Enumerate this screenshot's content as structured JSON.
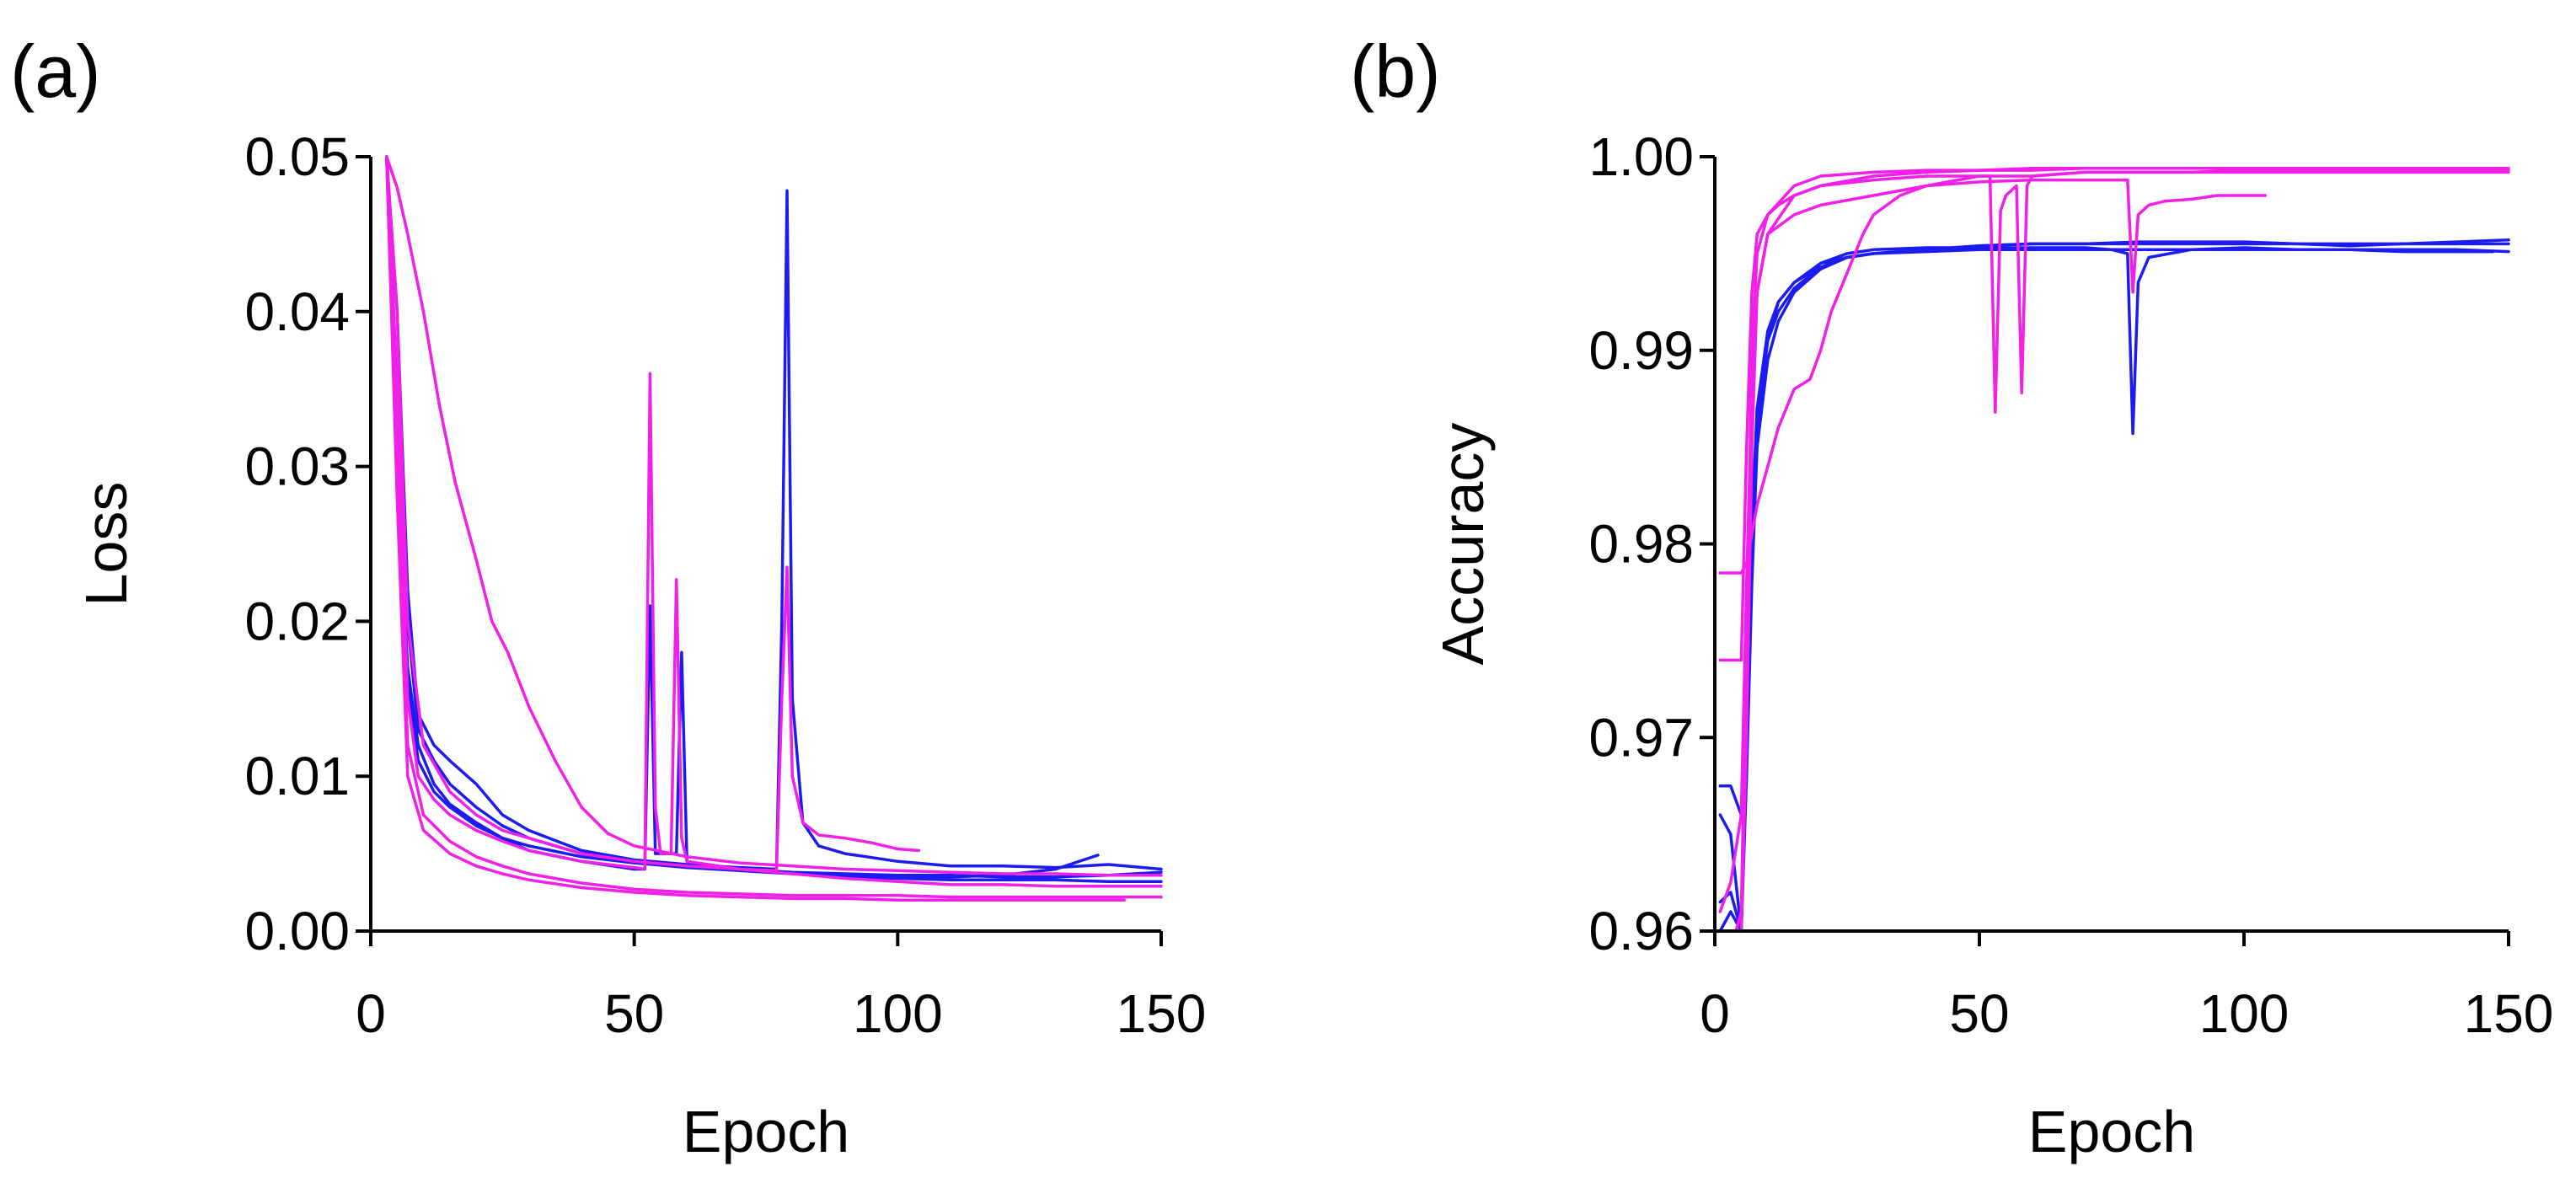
{
  "chart_data": [
    {
      "type": "line",
      "panel_label": "(a)",
      "xlabel": "Epoch",
      "ylabel": "Loss",
      "xlim": [
        0,
        150
      ],
      "ylim": [
        0,
        0.05
      ],
      "xticks": [
        0,
        50,
        100,
        150
      ],
      "xtick_labels": [
        "0",
        "50",
        "100",
        "150"
      ],
      "yticks": [
        0,
        0.01,
        0.02,
        0.03,
        0.04,
        0.05
      ],
      "ytick_labels": [
        "0.00",
        "0.01",
        "0.02",
        "0.03",
        "0.04",
        "0.05"
      ],
      "grid": false,
      "colors": {
        "blue": "#1c1cf0",
        "magenta": "#f020e8"
      },
      "series": [
        {
          "name": "blue-1",
          "color": "blue",
          "x": [
            3,
            5,
            7,
            9,
            12,
            15,
            20,
            25,
            30,
            40,
            50,
            60,
            70,
            80,
            90,
            100,
            110,
            120,
            130,
            140,
            150
          ],
          "values": [
            0.05,
            0.035,
            0.02,
            0.013,
            0.011,
            0.0095,
            0.008,
            0.0068,
            0.006,
            0.005,
            0.0045,
            0.0042,
            0.004,
            0.0038,
            0.0037,
            0.0036,
            0.0036,
            0.0035,
            0.0035,
            0.0036,
            0.0038
          ]
        },
        {
          "name": "blue-2",
          "color": "blue",
          "x": [
            3,
            5,
            7,
            9,
            12,
            15,
            20,
            25,
            30,
            40,
            50,
            52,
            53,
            54,
            58,
            59,
            60,
            70,
            80,
            90,
            100,
            110,
            120,
            130,
            140,
            150
          ],
          "values": [
            0.05,
            0.03,
            0.017,
            0.012,
            0.0095,
            0.0082,
            0.007,
            0.006,
            0.0052,
            0.0045,
            0.004,
            0.004,
            0.021,
            0.005,
            0.005,
            0.018,
            0.0045,
            0.004,
            0.0037,
            0.0035,
            0.0034,
            0.0033,
            0.0033,
            0.0033,
            0.0032,
            0.0032
          ]
        },
        {
          "name": "blue-3",
          "color": "blue",
          "x": [
            3,
            5,
            7,
            9,
            12,
            15,
            20,
            25,
            30,
            40,
            50,
            60,
            70,
            77,
            78,
            79,
            80,
            82,
            85,
            90,
            100,
            110,
            120,
            130,
            140,
            150
          ],
          "values": [
            0.05,
            0.04,
            0.022,
            0.014,
            0.012,
            0.011,
            0.0095,
            0.0075,
            0.0065,
            0.0052,
            0.0046,
            0.0043,
            0.0041,
            0.004,
            0.02,
            0.0478,
            0.015,
            0.007,
            0.0055,
            0.005,
            0.0045,
            0.0042,
            0.0042,
            0.0041,
            0.0043,
            0.004
          ]
        },
        {
          "name": "blue-4",
          "color": "blue",
          "x": [
            3,
            5,
            7,
            9,
            12,
            15,
            20,
            25,
            30,
            40,
            50,
            60,
            70,
            80,
            90,
            100,
            110,
            120,
            130,
            138
          ],
          "values": [
            0.05,
            0.032,
            0.016,
            0.011,
            0.009,
            0.008,
            0.0068,
            0.006,
            0.0055,
            0.0048,
            0.0044,
            0.0041,
            0.0039,
            0.0037,
            0.0036,
            0.0035,
            0.0035,
            0.0036,
            0.004,
            0.0049
          ]
        },
        {
          "name": "magenta-1",
          "color": "magenta",
          "x": [
            3,
            5,
            7,
            10,
            13,
            16,
            20,
            23,
            26,
            30,
            35,
            40,
            45,
            50,
            60,
            70,
            80,
            90,
            100,
            110,
            120,
            130,
            140,
            150
          ],
          "values": [
            0.05,
            0.048,
            0.045,
            0.04,
            0.034,
            0.029,
            0.024,
            0.02,
            0.018,
            0.0145,
            0.011,
            0.008,
            0.0063,
            0.0055,
            0.0048,
            0.0044,
            0.0042,
            0.004,
            0.0039,
            0.0038,
            0.0037,
            0.0037,
            0.0036,
            0.0036
          ]
        },
        {
          "name": "magenta-2",
          "color": "magenta",
          "x": [
            3,
            5,
            7,
            9,
            12,
            15,
            20,
            25,
            30,
            40,
            50,
            52,
            53,
            54,
            55,
            57,
            58,
            59,
            60,
            70,
            80,
            90,
            100,
            110,
            120,
            130,
            140,
            150
          ],
          "values": [
            0.05,
            0.035,
            0.015,
            0.01,
            0.0085,
            0.0075,
            0.0065,
            0.0058,
            0.0052,
            0.0045,
            0.0041,
            0.004,
            0.036,
            0.008,
            0.005,
            0.005,
            0.0227,
            0.006,
            0.0045,
            0.004,
            0.0037,
            0.0034,
            0.0032,
            0.003,
            0.003,
            0.0029,
            0.0029,
            0.0029
          ]
        },
        {
          "name": "magenta-3",
          "color": "magenta",
          "x": [
            3,
            5,
            7,
            10,
            15,
            20,
            25,
            30,
            40,
            50,
            60,
            70,
            77,
            78,
            79,
            80,
            82,
            85,
            90,
            95,
            100,
            104
          ],
          "values": [
            0.05,
            0.04,
            0.02,
            0.012,
            0.009,
            0.0075,
            0.0065,
            0.006,
            0.005,
            0.0045,
            0.0042,
            0.004,
            0.0039,
            0.015,
            0.0235,
            0.01,
            0.007,
            0.0062,
            0.006,
            0.0057,
            0.0053,
            0.0052
          ]
        },
        {
          "name": "magenta-4",
          "color": "magenta",
          "x": [
            3,
            5,
            7,
            10,
            15,
            20,
            25,
            30,
            40,
            50,
            60,
            70,
            80,
            90,
            100,
            110,
            120,
            130,
            140,
            150
          ],
          "values": [
            0.05,
            0.03,
            0.012,
            0.0075,
            0.0058,
            0.0048,
            0.0042,
            0.0037,
            0.0031,
            0.0027,
            0.0025,
            0.0024,
            0.0023,
            0.0023,
            0.0023,
            0.0022,
            0.0022,
            0.0022,
            0.0022,
            0.0022
          ]
        },
        {
          "name": "magenta-5",
          "color": "magenta",
          "x": [
            3,
            5,
            7,
            10,
            15,
            20,
            25,
            30,
            40,
            50,
            60,
            70,
            80,
            90,
            100,
            110,
            120,
            130,
            143
          ],
          "values": [
            0.05,
            0.028,
            0.01,
            0.0065,
            0.005,
            0.0042,
            0.0037,
            0.0033,
            0.0028,
            0.0025,
            0.0023,
            0.0022,
            0.0021,
            0.0021,
            0.002,
            0.002,
            0.002,
            0.002,
            0.002
          ]
        }
      ]
    },
    {
      "type": "line",
      "panel_label": "(b)",
      "xlabel": "Epoch",
      "ylabel": "Accuracy",
      "xlim": [
        0,
        150
      ],
      "ylim": [
        0.96,
        1.0
      ],
      "xticks": [
        0,
        50,
        100,
        150
      ],
      "xtick_labels": [
        "0",
        "50",
        "100",
        "150"
      ],
      "yticks": [
        0.96,
        0.97,
        0.98,
        0.99,
        1.0
      ],
      "ytick_labels": [
        "0.96",
        "0.97",
        "0.98",
        "0.99",
        "1.00"
      ],
      "grid": false,
      "colors": {
        "blue": "#1c1cf0",
        "magenta": "#f020e8"
      },
      "series": [
        {
          "name": "blue-1",
          "color": "blue",
          "x": [
            1,
            3,
            5,
            6,
            7,
            8,
            10,
            12,
            15,
            18,
            20,
            25,
            30,
            40,
            50,
            60,
            70,
            80,
            90,
            100,
            110,
            120,
            130,
            140,
            150
          ],
          "values": [
            0.9675,
            0.9675,
            0.966,
            0.975,
            0.982,
            0.986,
            0.9905,
            0.9925,
            0.9935,
            0.994,
            0.9945,
            0.9948,
            0.995,
            0.9952,
            0.9954,
            0.9955,
            0.9955,
            0.9955,
            0.9955,
            0.9955,
            0.9955,
            0.9954,
            0.9955,
            0.9955,
            0.9955
          ]
        },
        {
          "name": "blue-2",
          "color": "blue",
          "x": [
            1,
            3,
            5,
            6,
            7,
            8,
            10,
            12,
            15,
            20,
            25,
            30,
            40,
            50,
            60,
            70,
            75,
            78,
            79,
            80,
            82,
            90,
            100,
            110,
            120,
            130,
            140,
            150
          ],
          "values": [
            0.966,
            0.965,
            0.96,
            0.97,
            0.98,
            0.987,
            0.991,
            0.9925,
            0.9935,
            0.9945,
            0.995,
            0.9952,
            0.9953,
            0.9953,
            0.9953,
            0.9953,
            0.9952,
            0.995,
            0.9857,
            0.9935,
            0.9948,
            0.9952,
            0.9953,
            0.9952,
            0.9952,
            0.9952,
            0.9952,
            0.9951
          ]
        },
        {
          "name": "blue-3",
          "color": "blue",
          "x": [
            1,
            3,
            5,
            6,
            7,
            8,
            10,
            12,
            15,
            20,
            25,
            30,
            40,
            50,
            60,
            70,
            80,
            90,
            100,
            110,
            120,
            130,
            140,
            150
          ],
          "values": [
            0.9615,
            0.962,
            0.96,
            0.968,
            0.978,
            0.985,
            0.9895,
            0.9915,
            0.993,
            0.9942,
            0.9948,
            0.995,
            0.9952,
            0.9954,
            0.9955,
            0.9955,
            0.9956,
            0.9956,
            0.9956,
            0.9955,
            0.9955,
            0.9955,
            0.9956,
            0.9957
          ]
        },
        {
          "name": "blue-4",
          "color": "blue",
          "x": [
            1,
            3,
            5,
            6,
            7,
            8,
            10,
            12,
            15,
            20,
            25,
            30,
            40,
            50,
            60,
            70,
            80,
            90,
            100,
            110,
            120,
            130,
            140,
            147
          ],
          "values": [
            0.96,
            0.961,
            0.96,
            0.972,
            0.981,
            0.987,
            0.9905,
            0.992,
            0.9932,
            0.9943,
            0.9948,
            0.995,
            0.9951,
            0.9952,
            0.9952,
            0.9952,
            0.9952,
            0.9952,
            0.9952,
            0.9952,
            0.9952,
            0.9951,
            0.9951,
            0.9951
          ]
        },
        {
          "name": "magenta-1",
          "color": "magenta",
          "x": [
            1,
            3,
            5,
            6,
            7,
            8,
            10,
            12,
            15,
            18,
            20,
            22,
            25,
            28,
            30,
            35,
            40,
            50,
            60,
            70,
            80,
            90,
            100,
            110,
            120,
            130,
            140,
            150
          ],
          "values": [
            0.9785,
            0.9785,
            0.9785,
            0.979,
            0.9805,
            0.982,
            0.984,
            0.986,
            0.988,
            0.9885,
            0.99,
            0.992,
            0.994,
            0.996,
            0.997,
            0.998,
            0.9985,
            0.999,
            0.999,
            0.9992,
            0.9992,
            0.9992,
            0.9992,
            0.9992,
            0.9992,
            0.9992,
            0.9992,
            0.9992
          ]
        },
        {
          "name": "magenta-2",
          "color": "magenta",
          "x": [
            1,
            3,
            5,
            6,
            7,
            8,
            10,
            12,
            15,
            20,
            30,
            40,
            50,
            52,
            53,
            54,
            55,
            57,
            58,
            59,
            60,
            70,
            80,
            90,
            100,
            110,
            120,
            130,
            140,
            150
          ],
          "values": [
            0.974,
            0.974,
            0.974,
            0.985,
            0.993,
            0.996,
            0.997,
            0.9975,
            0.998,
            0.9985,
            0.9988,
            0.999,
            0.999,
            0.999,
            0.9868,
            0.9972,
            0.998,
            0.9985,
            0.9878,
            0.9985,
            0.999,
            0.9992,
            0.9992,
            0.9992,
            0.9993,
            0.9993,
            0.9993,
            0.9993,
            0.9993,
            0.9993
          ]
        },
        {
          "name": "magenta-3",
          "color": "magenta",
          "x": [
            1,
            3,
            5,
            6,
            7,
            8,
            10,
            15,
            20,
            30,
            40,
            50,
            60,
            70,
            75,
            78,
            79,
            80,
            82,
            85,
            90,
            95,
            100,
            104
          ],
          "values": [
            0.961,
            0.9625,
            0.966,
            0.978,
            0.988,
            0.993,
            0.996,
            0.997,
            0.9975,
            0.998,
            0.9985,
            0.9987,
            0.9988,
            0.9988,
            0.9988,
            0.9988,
            0.993,
            0.997,
            0.9975,
            0.9977,
            0.9978,
            0.998,
            0.998,
            0.998
          ]
        },
        {
          "name": "magenta-4",
          "color": "magenta",
          "x": [
            4,
            5,
            6,
            7,
            8,
            10,
            15,
            20,
            30,
            40,
            50,
            60,
            70,
            80,
            90,
            100,
            110,
            120,
            130,
            140,
            150
          ],
          "values": [
            0.96,
            0.961,
            0.975,
            0.99,
            0.995,
            0.997,
            0.9985,
            0.999,
            0.9992,
            0.9993,
            0.9993,
            0.9994,
            0.9994,
            0.9994,
            0.9994,
            0.9994,
            0.9994,
            0.9994,
            0.9994,
            0.9994,
            0.9994
          ]
        },
        {
          "name": "magenta-5",
          "color": "magenta",
          "x": [
            5,
            6,
            7,
            8,
            10,
            15,
            20,
            30,
            40,
            50,
            60,
            70,
            80,
            90,
            100,
            110,
            120,
            130,
            143
          ],
          "values": [
            0.96,
            0.97,
            0.985,
            0.993,
            0.996,
            0.998,
            0.9985,
            0.999,
            0.9992,
            0.9993,
            0.9993,
            0.9994,
            0.9994,
            0.9994,
            0.9994,
            0.9994,
            0.9994,
            0.9994,
            0.9994
          ]
        }
      ]
    }
  ]
}
